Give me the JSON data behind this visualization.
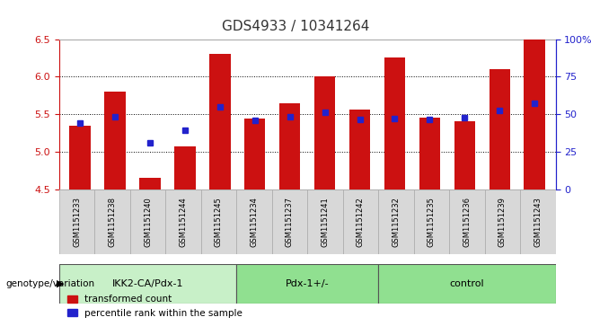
{
  "title": "GDS4933 / 10341264",
  "samples": [
    "GSM1151233",
    "GSM1151238",
    "GSM1151240",
    "GSM1151244",
    "GSM1151245",
    "GSM1151234",
    "GSM1151237",
    "GSM1151241",
    "GSM1151242",
    "GSM1151232",
    "GSM1151235",
    "GSM1151236",
    "GSM1151239",
    "GSM1151243"
  ],
  "red_values": [
    5.35,
    5.8,
    4.65,
    5.07,
    6.3,
    5.44,
    5.65,
    6.0,
    5.56,
    6.25,
    5.45,
    5.4,
    6.1,
    6.5
  ],
  "blue_values": [
    5.38,
    5.47,
    5.12,
    5.28,
    5.6,
    5.42,
    5.47,
    5.52,
    5.43,
    5.44,
    5.43,
    5.45,
    5.55,
    5.65
  ],
  "ymin": 4.5,
  "ymax": 6.5,
  "y2min": 0,
  "y2max": 100,
  "yticks_left": [
    4.5,
    5.0,
    5.5,
    6.0,
    6.5
  ],
  "yticks_right": [
    0,
    25,
    50,
    75,
    100
  ],
  "ytick_labels_right": [
    "0",
    "25",
    "50",
    "75",
    "100%"
  ],
  "groups": [
    {
      "label": "IKK2-CA/Pdx-1",
      "start": 0,
      "end": 5,
      "color": "#c8f0c8"
    },
    {
      "label": "Pdx-1+/-",
      "start": 5,
      "end": 9,
      "color": "#90e090"
    },
    {
      "label": "control",
      "start": 9,
      "end": 14,
      "color": "#90e090"
    }
  ],
  "group_label_prefix": "genotype/variation",
  "bar_color": "#cc1111",
  "dot_color": "#2222cc",
  "bar_bottom": 4.5,
  "bar_width": 0.6,
  "legend_red": "transformed count",
  "legend_blue": "percentile rank within the sample",
  "title_color": "#333333",
  "left_axis_color": "#cc1111",
  "right_axis_color": "#2222cc",
  "bg_color": "#ffffff",
  "plot_bg_color": "#ffffff",
  "grid_color": "#000000",
  "xlabel_bg": "#d0d0d0"
}
